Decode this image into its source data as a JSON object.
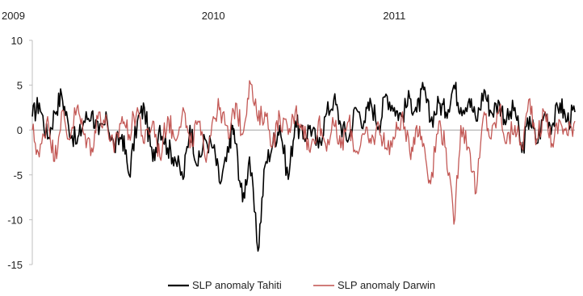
{
  "chart_data": {
    "type": "line",
    "title": "",
    "xlabel": "",
    "ylabel": "",
    "xlim": [
      "2009-01-01",
      "2011-12-31"
    ],
    "ylim": [
      -15,
      10
    ],
    "yticks": [
      10,
      5,
      0,
      -5,
      -10,
      -15
    ],
    "ytick_labels": [
      "10",
      "5",
      "0",
      "-5",
      "-10",
      "-15"
    ],
    "xticks": [
      "2009-01-01",
      "2010-01-01",
      "2011-01-01"
    ],
    "xtick_labels": [
      "2009",
      "2010",
      "2011"
    ],
    "grid": false,
    "legend_position": "bottom",
    "series": [
      {
        "name": "SLP anomaly Tahiti",
        "color": "#000000",
        "x": [
          "2009-01-01",
          "2009-01-15",
          "2009-02-01",
          "2009-02-15",
          "2009-03-01",
          "2009-03-15",
          "2009-04-01",
          "2009-04-15",
          "2009-05-01",
          "2009-05-15",
          "2009-06-01",
          "2009-06-15",
          "2009-07-01",
          "2009-07-15",
          "2009-08-01",
          "2009-08-15",
          "2009-09-01",
          "2009-09-15",
          "2009-10-01",
          "2009-10-15",
          "2009-11-01",
          "2009-11-15",
          "2009-12-01",
          "2009-12-15",
          "2010-01-01",
          "2010-01-15",
          "2010-02-01",
          "2010-02-08",
          "2010-02-15",
          "2010-03-01",
          "2010-03-15",
          "2010-04-01",
          "2010-04-15",
          "2010-05-01",
          "2010-05-15",
          "2010-06-01",
          "2010-06-15",
          "2010-07-01",
          "2010-07-15",
          "2010-08-01",
          "2010-08-15",
          "2010-09-01",
          "2010-09-15",
          "2010-10-01",
          "2010-10-15",
          "2010-11-01",
          "2010-11-15",
          "2010-12-01",
          "2010-12-15",
          "2011-01-01",
          "2011-01-15",
          "2011-02-01",
          "2011-02-15",
          "2011-03-01",
          "2011-03-15",
          "2011-04-01",
          "2011-04-15",
          "2011-05-01",
          "2011-05-15",
          "2011-06-01",
          "2011-06-15",
          "2011-07-01",
          "2011-07-15",
          "2011-08-01",
          "2011-08-15",
          "2011-09-01",
          "2011-09-15",
          "2011-10-01",
          "2011-10-15",
          "2011-11-01",
          "2011-11-15",
          "2011-12-01",
          "2011-12-15",
          "2011-12-31"
        ],
        "y": [
          1.5,
          3.0,
          -1.0,
          2.0,
          4.0,
          0.5,
          -1.5,
          1.0,
          2.0,
          -0.5,
          1.0,
          -2.0,
          -0.5,
          -5.0,
          1.0,
          2.5,
          -3.5,
          0.5,
          -2.0,
          -3.0,
          -5.5,
          0.5,
          -4.0,
          -1.0,
          -2.0,
          -6.0,
          -2.5,
          0.5,
          -1.5,
          -8.0,
          -3.0,
          -13.5,
          -4.0,
          -1.5,
          0.5,
          -5.5,
          1.0,
          -1.0,
          0.5,
          -2.0,
          1.5,
          3.5,
          0.5,
          -1.0,
          2.5,
          1.0,
          3.0,
          0.5,
          4.0,
          2.5,
          1.5,
          3.5,
          2.0,
          4.5,
          1.0,
          3.0,
          2.0,
          5.0,
          2.5,
          3.5,
          1.0,
          4.5,
          2.0,
          3.0,
          1.0,
          2.5,
          -2.5,
          1.5,
          -1.5,
          2.0,
          0.5,
          3.0,
          1.0,
          2.0
        ]
      },
      {
        "name": "SLP anomaly Darwin",
        "color": "#c0504d",
        "x": [
          "2009-01-01",
          "2009-01-15",
          "2009-02-01",
          "2009-02-15",
          "2009-03-01",
          "2009-03-15",
          "2009-04-01",
          "2009-04-15",
          "2009-05-01",
          "2009-05-15",
          "2009-06-01",
          "2009-06-15",
          "2009-07-01",
          "2009-07-15",
          "2009-08-01",
          "2009-08-15",
          "2009-09-01",
          "2009-09-15",
          "2009-10-01",
          "2009-10-15",
          "2009-11-01",
          "2009-11-15",
          "2009-12-01",
          "2009-12-15",
          "2010-01-01",
          "2010-01-15",
          "2010-02-01",
          "2010-02-15",
          "2010-03-01",
          "2010-03-15",
          "2010-04-01",
          "2010-04-15",
          "2010-05-01",
          "2010-05-15",
          "2010-06-01",
          "2010-06-15",
          "2010-07-01",
          "2010-07-15",
          "2010-08-01",
          "2010-08-15",
          "2010-09-01",
          "2010-09-15",
          "2010-10-01",
          "2010-10-15",
          "2010-11-01",
          "2010-11-15",
          "2010-12-01",
          "2010-12-15",
          "2011-01-01",
          "2011-01-15",
          "2011-02-01",
          "2011-02-15",
          "2011-03-01",
          "2011-03-15",
          "2011-04-01",
          "2011-04-15",
          "2011-05-01",
          "2011-05-15",
          "2011-06-01",
          "2011-06-15",
          "2011-07-01",
          "2011-07-15",
          "2011-08-01",
          "2011-08-15",
          "2011-09-01",
          "2011-09-15",
          "2011-10-01",
          "2011-10-15",
          "2011-11-01",
          "2011-11-15",
          "2011-12-01",
          "2011-12-15",
          "2011-12-31"
        ],
        "y": [
          0.0,
          -3.0,
          1.5,
          -3.5,
          2.0,
          -1.0,
          2.5,
          -0.5,
          -2.0,
          2.0,
          0.5,
          -2.5,
          1.5,
          -0.5,
          2.5,
          -1.5,
          1.0,
          -3.0,
          1.5,
          -1.0,
          2.5,
          -2.0,
          1.0,
          -3.0,
          1.5,
          2.5,
          -1.0,
          3.0,
          -0.5,
          5.5,
          1.0,
          2.0,
          -1.5,
          1.5,
          -0.5,
          2.0,
          0.5,
          -2.5,
          1.0,
          -1.5,
          0.5,
          -2.0,
          1.0,
          -2.5,
          -0.5,
          -1.5,
          0.5,
          -2.0,
          -1.0,
          1.5,
          -2.5,
          0.5,
          -1.5,
          -6.0,
          1.0,
          -2.0,
          -10.5,
          0.5,
          -2.0,
          -7.0,
          2.0,
          -1.0,
          2.5,
          -1.5,
          0.5,
          -2.0,
          3.5,
          -1.0,
          2.0,
          -1.5,
          1.0,
          -0.5,
          1.0
        ]
      }
    ]
  }
}
